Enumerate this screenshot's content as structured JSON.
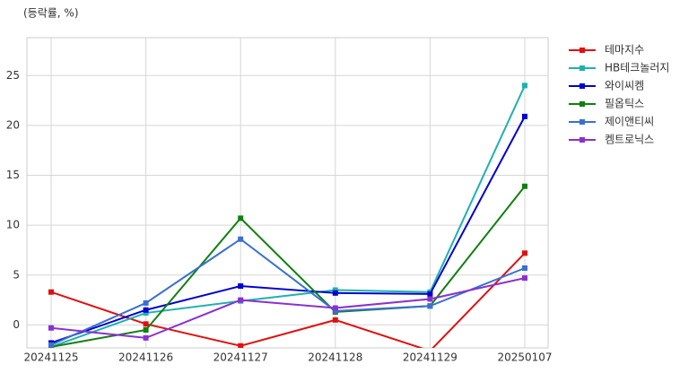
{
  "chart_data": {
    "type": "line",
    "subtitle": "(등락률, %)",
    "categories": [
      "20241125",
      "20241126",
      "20241127",
      "20241128",
      "20241129",
      "20250107"
    ],
    "series": [
      {
        "name": "테마지수",
        "color": "#e01010",
        "values": [
          3.3,
          0.1,
          -2.1,
          0.5,
          -2.6,
          7.2
        ]
      },
      {
        "name": "HB테크놀러지",
        "color": "#20b0b0",
        "values": [
          -2.2,
          1.2,
          2.4,
          3.5,
          3.3,
          24.0
        ]
      },
      {
        "name": "와이씨켐",
        "color": "#0000d0",
        "values": [
          -1.8,
          1.5,
          3.9,
          3.2,
          3.1,
          20.9
        ]
      },
      {
        "name": "필옵틱스",
        "color": "#108010",
        "values": [
          -2.2,
          -0.5,
          10.7,
          1.3,
          1.9,
          13.9
        ]
      },
      {
        "name": "제이앤티씨",
        "color": "#3a70d0",
        "values": [
          -2.0,
          2.2,
          8.6,
          1.4,
          1.9,
          5.7
        ]
      },
      {
        "name": "켐트로닉스",
        "color": "#8a30d0",
        "values": [
          -0.3,
          -1.3,
          2.5,
          1.7,
          2.6,
          4.7
        ]
      }
    ],
    "ylim": [
      -2.3,
      28.8
    ],
    "yticks": [
      0,
      5,
      10,
      15,
      20,
      25
    ],
    "grid": true,
    "legend": "right"
  }
}
